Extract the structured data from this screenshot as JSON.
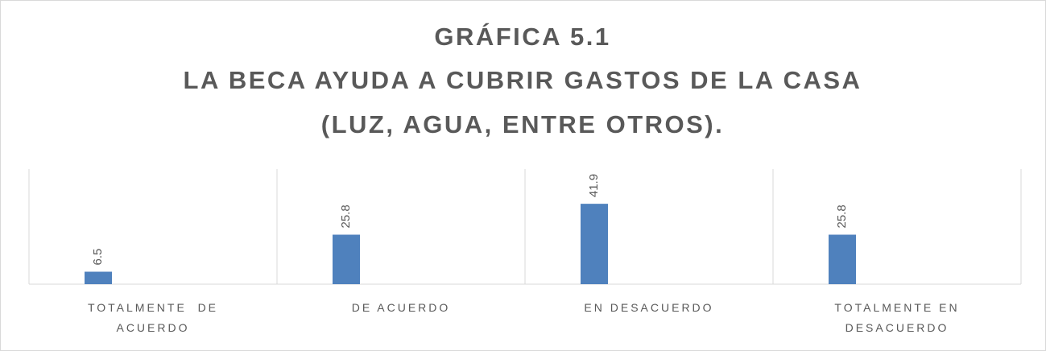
{
  "chart_data": {
    "type": "bar",
    "title": [
      "GRÁFICA 5.1",
      "LA BECA AYUDA A CUBRIR GASTOS DE LA CASA",
      "(LUZ, AGUA, ENTRE OTROS)."
    ],
    "categories": [
      "TOTALMENTE  DE ACUERDO",
      "DE ACUERDO",
      "EN DESACUERDO",
      "TOTALMENTE EN DESACUERDO"
    ],
    "values": [
      6.5,
      25.8,
      41.9,
      25.8
    ],
    "color": "#4f81bd",
    "ylim": [
      0,
      60
    ]
  }
}
